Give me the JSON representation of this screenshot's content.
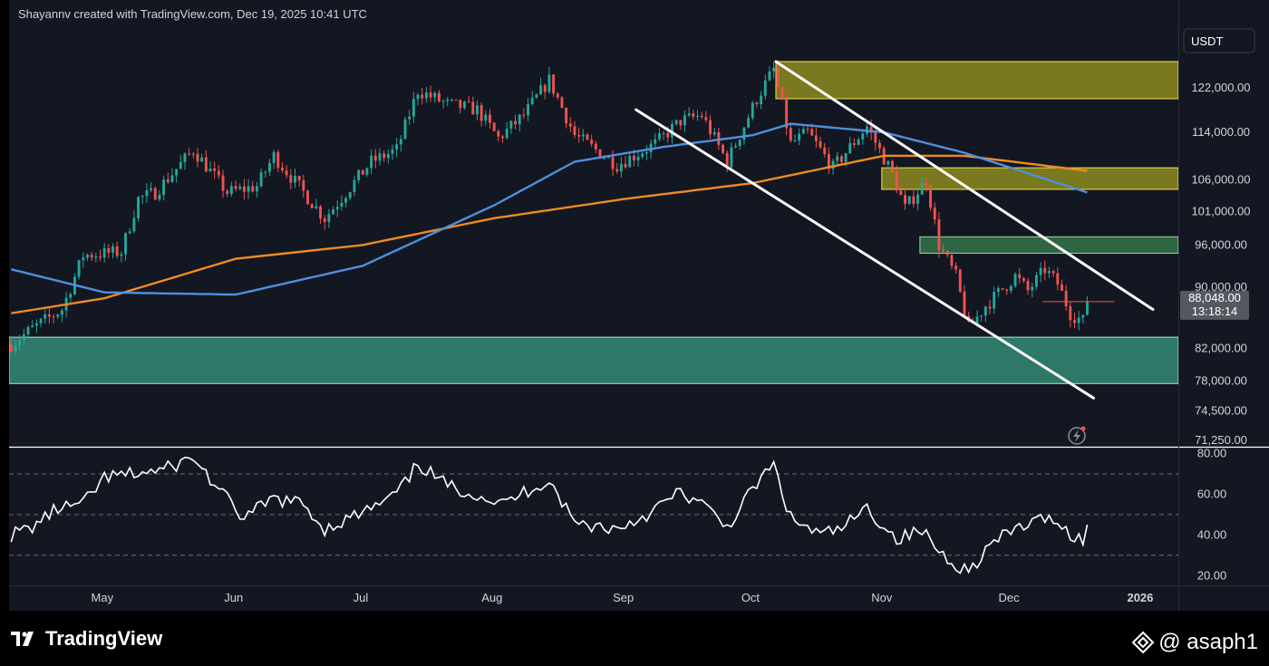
{
  "header": {
    "credit": "Shayannv created with TradingView.com, Dec 19, 2025 10:41 UTC"
  },
  "footer": {
    "brand_name": "TradingView",
    "watermark_handle": "@ asaph1"
  },
  "colors": {
    "background": "#131722",
    "candle_up": "#26a69a",
    "candle_down": "#ef5350",
    "ma_blue": "#4f8fdd",
    "ma_orange": "#f08a24",
    "supply_zone": "#8d8b1e",
    "supply_border": "#f0e44a",
    "demand_zone": "#2f7d6b",
    "demand_zone_small": "#2f6a47",
    "channel": "#ffffff",
    "rsi_line": "#ffffff",
    "price_label_bg": "#55585f"
  },
  "chart_data": [
    {
      "type": "candlestick",
      "symbol_unit": "USDT",
      "y_scale": "log",
      "x_labels": [
        "May",
        "Jun",
        "Jul",
        "Aug",
        "Sep",
        "Oct",
        "Nov",
        "Dec",
        "2026"
      ],
      "y_tick_labels": [
        "122,000.00",
        "114,000.00",
        "106,000.00",
        "101,000.00",
        "96,000.00",
        "90,000.00",
        "82,000.00",
        "78,000.00",
        "74,500.00",
        "71,250.00"
      ],
      "y_ticks": [
        122000,
        114000,
        106000,
        101000,
        96000,
        90000,
        82000,
        78000,
        74500,
        71250
      ],
      "last_price_label": "88,048.00",
      "countdown_label": "13:18:14",
      "price_path": [
        [
          "Apr 9",
          82500
        ],
        [
          "Apr 14",
          84500
        ],
        [
          "Apr 21",
          87000
        ],
        [
          "Apr 26",
          94500
        ],
        [
          "May 5",
          95000
        ],
        [
          "May 9",
          103000
        ],
        [
          "May 13",
          104000
        ],
        [
          "May 22",
          111000
        ],
        [
          "May 30",
          104000
        ],
        [
          "Jun 6",
          105000
        ],
        [
          "Jun 10",
          110000
        ],
        [
          "Jun 22",
          100000
        ],
        [
          "Jul 3",
          109000
        ],
        [
          "Jul 9",
          111000
        ],
        [
          "Jul 14",
          121500
        ],
        [
          "Jul 21",
          119000
        ],
        [
          "Jul 28",
          118000
        ],
        [
          "Aug 2",
          113000
        ],
        [
          "Aug 8",
          117000
        ],
        [
          "Aug 14",
          123500
        ],
        [
          "Aug 20",
          113500
        ],
        [
          "Aug 30",
          108500
        ],
        [
          "Sep 8",
          112000
        ],
        [
          "Sep 14",
          116000
        ],
        [
          "Sep 19",
          117000
        ],
        [
          "Sep 25",
          109000
        ],
        [
          "Oct 2",
          120000
        ],
        [
          "Oct 6",
          125500
        ],
        [
          "Oct 10",
          112000
        ],
        [
          "Oct 14",
          114000
        ],
        [
          "Oct 20",
          108000
        ],
        [
          "Oct 28",
          115000
        ],
        [
          "Nov 3",
          107000
        ],
        [
          "Nov 6",
          101500
        ],
        [
          "Nov 11",
          106000
        ],
        [
          "Nov 14",
          96000
        ],
        [
          "Nov 18",
          91500
        ],
        [
          "Nov 21",
          84500
        ],
        [
          "Nov 25",
          87500
        ],
        [
          "Dec 2",
          91500
        ],
        [
          "Dec 5",
          89500
        ],
        [
          "Dec 9",
          92500
        ],
        [
          "Dec 12",
          90500
        ],
        [
          "Dec 15",
          86500
        ],
        [
          "Dec 18",
          85500
        ],
        [
          "Dec 19",
          88048
        ]
      ],
      "ma_blue": [
        [
          "Apr 9",
          92500
        ],
        [
          "May 1",
          89300
        ],
        [
          "Jun 1",
          89000
        ],
        [
          "Jul 1",
          93000
        ],
        [
          "Aug 1",
          102000
        ],
        [
          "Aug 20",
          109000
        ],
        [
          "Sep 10",
          111500
        ],
        [
          "Oct 1",
          113500
        ],
        [
          "Oct 10",
          115500
        ],
        [
          "Nov 1",
          114000
        ],
        [
          "Nov 20",
          110500
        ],
        [
          "Dec 19",
          104000
        ]
      ],
      "ma_orange": [
        [
          "Apr 9",
          86500
        ],
        [
          "May 1",
          88500
        ],
        [
          "Jun 1",
          94000
        ],
        [
          "Jul 1",
          96000
        ],
        [
          "Aug 1",
          100000
        ],
        [
          "Sep 1",
          103000
        ],
        [
          "Oct 1",
          105500
        ],
        [
          "Nov 1",
          110000
        ],
        [
          "Nov 20",
          110000
        ],
        [
          "Dec 19",
          107500
        ]
      ],
      "zones": [
        {
          "kind": "supply",
          "from": "Oct 7",
          "to": "end",
          "low": 120000,
          "high": 127000
        },
        {
          "kind": "supply",
          "from": "Nov 1",
          "to": "end",
          "low": 104500,
          "high": 108000
        },
        {
          "kind": "demand",
          "from": "Nov 10",
          "to": "end",
          "low": 94800,
          "high": 97200
        },
        {
          "kind": "demand",
          "from": "start",
          "to": "end",
          "low": 77700,
          "high": 83400
        }
      ],
      "channel_lines": [
        {
          "from": [
            "Oct 7",
            127000
          ],
          "to": [
            "Jan 4",
            87000
          ]
        },
        {
          "from": [
            "Sep 4",
            118000
          ],
          "to": [
            "Dec 21",
            76000
          ]
        }
      ]
    },
    {
      "type": "line",
      "indicator": "RSI",
      "y_ticks": [
        "80.00",
        "60.00",
        "40.00",
        "20.00"
      ],
      "levels": [
        70,
        50,
        30
      ],
      "ylim": [
        17,
        82
      ],
      "x": [
        "Apr 9",
        "Apr 14",
        "Apr 20",
        "Apr 26",
        "May 1",
        "May 8",
        "May 15",
        "May 22",
        "May 28",
        "Jun 3",
        "Jun 10",
        "Jun 17",
        "Jun 22",
        "Jun 30",
        "Jul 7",
        "Jul 11",
        "Jul 14",
        "Jul 21",
        "Jul 28",
        "Aug 3",
        "Aug 9",
        "Aug 14",
        "Aug 20",
        "Aug 30",
        "Sep 6",
        "Sep 14",
        "Sep 19",
        "Sep 25",
        "Oct 3",
        "Oct 6",
        "Oct 10",
        "Oct 17",
        "Oct 22",
        "Oct 28",
        "Nov 4",
        "Nov 10",
        "Nov 15",
        "Nov 21",
        "Nov 26",
        "Dec 3",
        "Dec 8",
        "Dec 11",
        "Dec 15",
        "Dec 18",
        "Dec 19"
      ],
      "values": [
        40,
        44,
        53,
        55,
        68,
        70,
        72,
        78,
        62,
        48,
        58,
        55,
        43,
        50,
        57,
        65,
        75,
        64,
        60,
        55,
        62,
        67,
        46,
        43,
        50,
        61,
        55,
        44,
        68,
        74,
        48,
        40,
        43,
        53,
        38,
        42,
        30,
        22,
        35,
        44,
        47,
        49,
        40,
        38,
        45
      ]
    }
  ]
}
